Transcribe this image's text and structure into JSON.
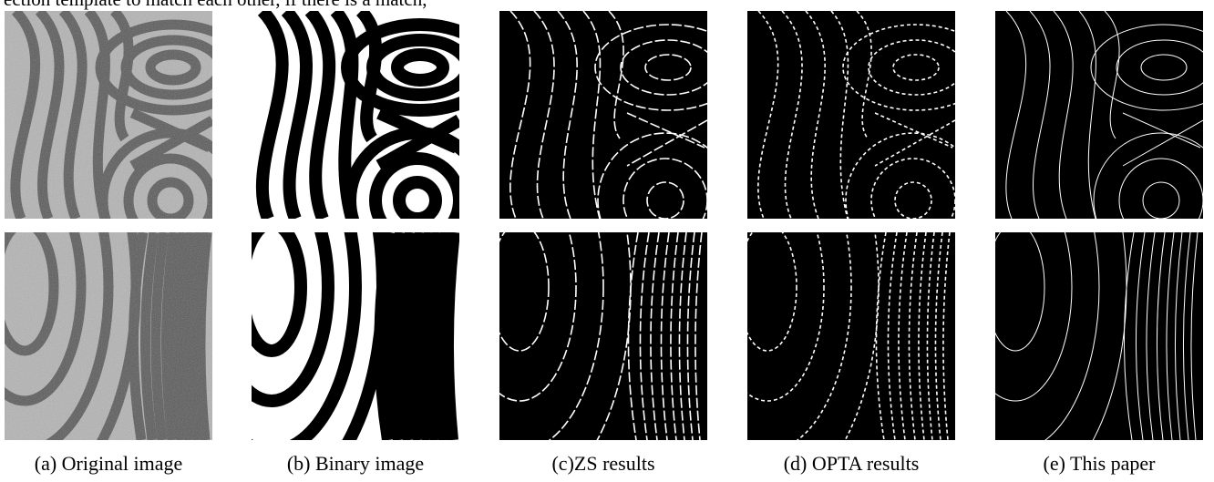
{
  "body_text": {
    "cut_line": "ection template to match each other, if there is a match,"
  },
  "figure": {
    "captions": [
      "(a) Original image",
      "(b) Binary image",
      "(c)ZS results",
      "(d) OPTA results",
      "(e) This paper"
    ]
  }
}
